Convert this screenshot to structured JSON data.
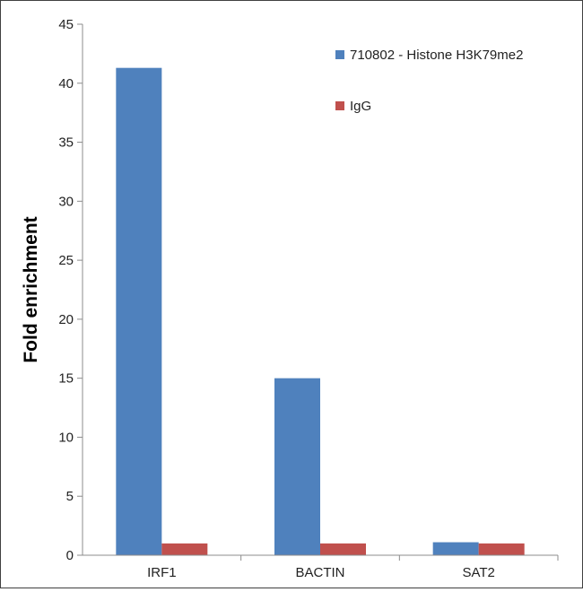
{
  "chart_data": {
    "type": "bar",
    "title": "",
    "xlabel": "",
    "ylabel": "Fold enrichment",
    "categories": [
      "IRF1",
      "BACTIN",
      "SAT2"
    ],
    "ylim": [
      0,
      45
    ],
    "yticks": [
      0,
      5,
      10,
      15,
      20,
      25,
      30,
      35,
      40,
      45
    ],
    "grid": false,
    "legend_position": "top-right",
    "series": [
      {
        "name": "710802 - Histone H3K79me2",
        "color": "#4f81bd",
        "values": [
          41.3,
          15.0,
          1.1
        ]
      },
      {
        "name": "IgG",
        "color": "#c0504d",
        "values": [
          1.0,
          1.0,
          1.0
        ]
      }
    ]
  }
}
